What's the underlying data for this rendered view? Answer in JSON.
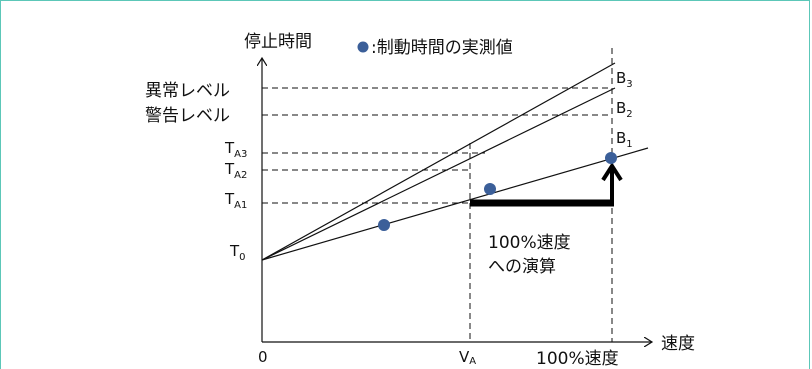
{
  "legend": {
    "marker_color": "#3b5f99",
    "text": ":制動時間の実測値"
  },
  "y_axis_label": "停止時間",
  "x_axis_label": "速度",
  "y_labels": {
    "abnormal": "異常レベル",
    "warning": "警告レベル",
    "ta3_main": "T",
    "ta3_sub": "A3",
    "ta2_main": "T",
    "ta2_sub": "A2",
    "ta1_main": "T",
    "ta1_sub": "A1",
    "t0_main": "T",
    "t0_sub": "0"
  },
  "x_labels": {
    "origin": "0",
    "va_main": "V",
    "va_sub": "A",
    "full_speed": "100%速度"
  },
  "line_labels": {
    "b3_main": "B",
    "b3_sub": "3",
    "b2_main": "B",
    "b2_sub": "2",
    "b1_main": "B",
    "b1_sub": "1"
  },
  "annotation": {
    "line1": "100%速度",
    "line2": "への演算"
  },
  "colors": {
    "frame_border": "#5cc7b8",
    "marker": "#3b5f99"
  }
}
